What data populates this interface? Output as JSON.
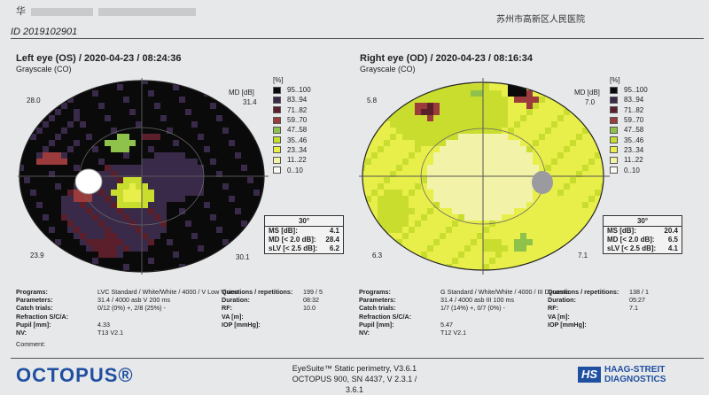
{
  "header": {
    "name_prefix": "华",
    "hospital": "苏州市高新区人民医院",
    "id_line": "ID 2019102901"
  },
  "colors": {
    "steps": [
      "#0a0a0a",
      "#3a2a4a",
      "#5a1f2a",
      "#9c3b3b",
      "#8fc24a",
      "#c9dd2f",
      "#e8ef4a",
      "#f2f3a8",
      "#fafaf2"
    ],
    "frame": "#222222"
  },
  "legend_ranges": [
    "95..100",
    "83..94",
    "71..82",
    "59..70",
    "47..58",
    "35..46",
    "23..34",
    "11..22",
    "0..10"
  ],
  "left_eye": {
    "title": "Left eye (OS) / 2020-04-23 / 08:24:36",
    "subtitle": "Grayscale (CO)",
    "pct_label": "[%]",
    "md_label": "MD [dB]",
    "md_value": "31.4",
    "corner_tl": "28.0",
    "corner_bl": "23.9",
    "corner_br": "30.1",
    "stats": {
      "header": "30°",
      "rows": [
        {
          "k": "MS [dB]:",
          "v": "4.1"
        },
        {
          "k": "MD [< 2.0 dB]:",
          "v": "28.4"
        },
        {
          "k": "sLV [< 2.5 dB]:",
          "v": "6.2"
        }
      ]
    },
    "info": [
      {
        "k": "Programs:",
        "v": "LVC Standard / White/White / 4000 / V Low Vision"
      },
      {
        "k": "Parameters:",
        "v": "31.4 / 4000 asb V 200 ms"
      },
      {
        "k": "Catch trials:",
        "v": "0/12 (0%) +, 2/8 (25%) -"
      },
      {
        "k": "Refraction S/C/A:",
        "v": ""
      },
      {
        "k": "Pupil [mm]:",
        "v": "4.33"
      },
      {
        "k": "NV:",
        "v": "T13 V2.1"
      }
    ],
    "info2": [
      {
        "k": "Questions / repetitions:",
        "v": "199 / 5"
      },
      {
        "k": "Duration:",
        "v": "08:32"
      },
      {
        "k": "RF:",
        "v": "10.0"
      },
      {
        "k": "VA [m]:",
        "v": ""
      },
      {
        "k": "IOP [mmHg]:",
        "v": ""
      }
    ],
    "comment": "Comment:"
  },
  "right_eye": {
    "title": "Right eye (OD) / 2020-04-23 / 08:16:34",
    "subtitle": "Grayscale (CO)",
    "pct_label": "[%]",
    "md_label": "MD [dB]",
    "md_value": "7.0",
    "corner_tl": "5.8",
    "corner_bl": "6.3",
    "corner_br": "7.1",
    "stats": {
      "header": "30°",
      "rows": [
        {
          "k": "MS [dB]:",
          "v": "20.4"
        },
        {
          "k": "MD [< 2.0 dB]:",
          "v": "6.5"
        },
        {
          "k": "sLV [< 2.5 dB]:",
          "v": "4.1"
        }
      ]
    },
    "info": [
      {
        "k": "Programs:",
        "v": "G Standard / White/White / 4000 / III Dynamic"
      },
      {
        "k": "Parameters:",
        "v": "31.4 / 4000 asb III 100 ms"
      },
      {
        "k": "Catch trials:",
        "v": "1/7 (14%) +, 0/7 (0%) -"
      },
      {
        "k": "Refraction S/C/A:",
        "v": ""
      },
      {
        "k": "Pupil [mm]:",
        "v": "5.47"
      },
      {
        "k": "NV:",
        "v": "T12 V2.1"
      }
    ],
    "info2": [
      {
        "k": "Questions / repetitions:",
        "v": "138 / 1"
      },
      {
        "k": "Duration:",
        "v": "05:27"
      },
      {
        "k": "RF:",
        "v": "7.1"
      },
      {
        "k": "VA [m]:",
        "v": ""
      },
      {
        "k": "IOP [mmHg]:",
        "v": ""
      }
    ]
  },
  "footer": {
    "logo": "OCTOPUS®",
    "line1": "EyeSuite™ Static perimetry, V3.6.1",
    "line2": "OCTOPUS 900, SN 4437, V 2.3.1 / 3.6.1",
    "brand_mark": "HS",
    "brand_line1": "HAAG-STREIT",
    "brand_line2": "DIAGNOSTICS"
  }
}
